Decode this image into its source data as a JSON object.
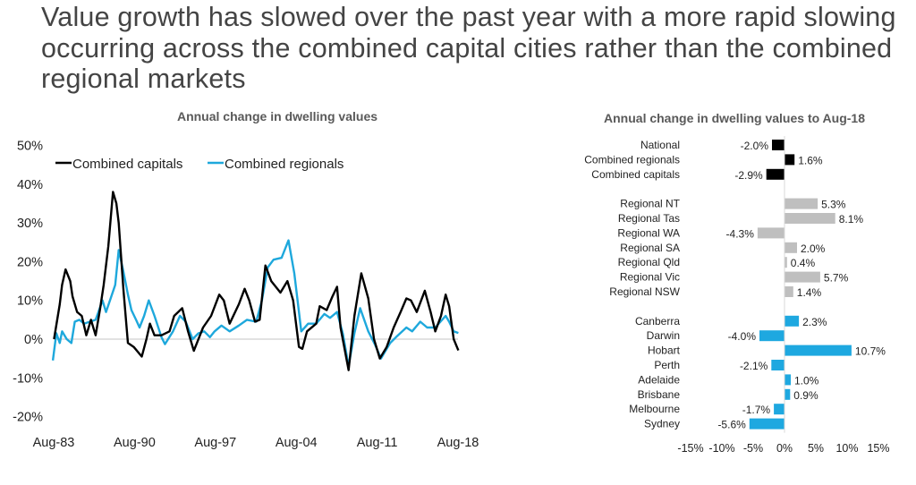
{
  "slide": {
    "title": "Value growth has slowed over the past year with a more rapid slowing occurring across the combined capital cities rather than the combined regional markets"
  },
  "colors": {
    "capitals": "#000000",
    "regionals": "#1ea8dc",
    "regional_bars": "#bfbfbf",
    "city_bars": "#1ea8e0",
    "summary_bars": "#000000"
  },
  "chart_data": [
    {
      "type": "line",
      "title": "Annual change in dwelling values",
      "xlabel": "",
      "ylabel": "",
      "xlim": [
        1983.67,
        2018.67
      ],
      "ylim": [
        -20,
        50
      ],
      "yticks": [
        "-20%",
        "-10%",
        "0%",
        "10%",
        "20%",
        "30%",
        "40%",
        "50%"
      ],
      "ytick_values": [
        -20,
        -10,
        0,
        10,
        20,
        30,
        40,
        50
      ],
      "xticks": [
        "Aug-83",
        "Aug-90",
        "Aug-97",
        "Aug-04",
        "Aug-11",
        "Aug-18"
      ],
      "xtick_values": [
        1983.67,
        1990.67,
        1997.67,
        2004.67,
        2011.67,
        2018.67
      ],
      "legend_position": "top-left",
      "series": [
        {
          "name": "Combined capitals",
          "color": "#000000",
          "x": [
            1983.7,
            1984.2,
            1984.4,
            1984.7,
            1985.1,
            1985.3,
            1985.7,
            1986.1,
            1986.5,
            1986.9,
            1987.3,
            1987.7,
            1988.0,
            1988.4,
            1988.8,
            1989.1,
            1989.3,
            1989.7,
            1990.1,
            1990.6,
            1991.3,
            1991.7,
            1992.0,
            1992.4,
            1993.0,
            1993.7,
            1994.1,
            1994.8,
            1995.3,
            1995.8,
            1996.6,
            1997.3,
            1998.0,
            1998.4,
            1998.9,
            1999.7,
            2000.2,
            2000.6,
            2001.1,
            2001.5,
            2002.0,
            2002.5,
            2003.3,
            2003.9,
            2004.4,
            2004.9,
            2005.2,
            2005.6,
            2006.4,
            2006.7,
            2007.3,
            2007.8,
            2008.2,
            2008.5,
            2009.2,
            2009.7,
            2010.3,
            2010.9,
            2011.4,
            2011.9,
            2012.5,
            2013.1,
            2013.7,
            2014.2,
            2014.6,
            2015.1,
            2015.8,
            2016.3,
            2016.7,
            2017.2,
            2017.6,
            2017.9,
            2018.3,
            2018.7
          ],
          "y": [
            0,
            9,
            14,
            18,
            15,
            11,
            7,
            6,
            1,
            5,
            1,
            8,
            14,
            24,
            38,
            35,
            30,
            13,
            -1,
            -2,
            -4.5,
            0,
            4,
            1,
            1,
            2,
            6,
            8,
            2,
            -3,
            3,
            6,
            11.5,
            10,
            4,
            9,
            13,
            10,
            4.5,
            5,
            19,
            15,
            12,
            15,
            10,
            -2,
            -2.5,
            2,
            4,
            8.5,
            7.5,
            11,
            13.5,
            3,
            -8,
            6,
            17,
            10.5,
            0,
            -5,
            -2,
            3,
            7,
            10.5,
            10,
            7,
            12.5,
            7,
            2,
            6,
            11.5,
            8.5,
            0,
            -2.9
          ]
        },
        {
          "name": "Combined regionals",
          "color": "#1ea8dc",
          "x": [
            1983.6,
            1983.9,
            1984.2,
            1984.4,
            1984.8,
            1985.2,
            1985.5,
            1985.9,
            1986.3,
            1986.8,
            1987.3,
            1987.9,
            1988.2,
            1988.6,
            1989.0,
            1989.3,
            1989.7,
            1990.1,
            1990.4,
            1990.8,
            1991.1,
            1991.5,
            1991.9,
            1992.4,
            1993.0,
            1993.3,
            1994.0,
            1994.6,
            1995.1,
            1995.7,
            1996.2,
            1996.7,
            1997.2,
            1997.6,
            1998.2,
            1998.9,
            1999.7,
            2000.4,
            2001.2,
            2001.7,
            2002.2,
            2002.7,
            2003.4,
            2004.0,
            2004.5,
            2005.1,
            2005.7,
            2006.4,
            2007.1,
            2007.6,
            2008.2,
            2008.7,
            2009.2,
            2009.7,
            2010.2,
            2010.9,
            2011.5,
            2012.0,
            2012.8,
            2013.3,
            2014.2,
            2014.7,
            2015.4,
            2016.0,
            2016.7,
            2017.6,
            2017.9,
            2018.3,
            2018.7
          ],
          "y": [
            -5.5,
            1.5,
            -1,
            2,
            0,
            -1,
            4.5,
            5,
            4,
            4.5,
            5,
            10,
            7,
            10.5,
            14,
            23,
            17.5,
            11.5,
            7.5,
            5,
            3,
            6,
            10,
            6,
            0.5,
            -1.3,
            2,
            6,
            4.5,
            0,
            1.5,
            2,
            0.5,
            2,
            3.5,
            2,
            3.5,
            5,
            4.5,
            10,
            18.5,
            20.5,
            21,
            25.5,
            17,
            2,
            4,
            4,
            6.5,
            5.5,
            7,
            1.5,
            -7,
            1.5,
            8,
            2,
            -1.5,
            -5,
            -1,
            0.5,
            3,
            2,
            4.5,
            3,
            3,
            6,
            4.5,
            2,
            1.6
          ]
        }
      ]
    },
    {
      "type": "bar",
      "orientation": "horizontal",
      "title": "Annual change in dwelling values to Aug-18",
      "xlim": [
        -15,
        15
      ],
      "xticks": [
        "-15%",
        "-10%",
        "-5%",
        "0%",
        "5%",
        "10%",
        "15%"
      ],
      "xtick_values": [
        -15,
        -10,
        -5,
        0,
        5,
        10,
        15
      ],
      "groups": [
        {
          "name": "summary",
          "color": "#000000",
          "categories": [
            "National",
            "Combined regionals",
            "Combined capitals"
          ],
          "values": [
            -2.0,
            1.6,
            -2.9
          ],
          "labels": [
            "-2.0%",
            "1.6%",
            "-2.9%"
          ]
        },
        {
          "name": "regional",
          "color": "#bfbfbf",
          "categories": [
            "Regional NT",
            "Regional Tas",
            "Regional WA",
            "Regional SA",
            "Regional Qld",
            "Regional Vic",
            "Regional NSW"
          ],
          "values": [
            5.3,
            8.1,
            -4.3,
            2.0,
            0.4,
            5.7,
            1.4
          ],
          "labels": [
            "5.3%",
            "8.1%",
            "-4.3%",
            "2.0%",
            "0.4%",
            "5.7%",
            "1.4%"
          ]
        },
        {
          "name": "capital",
          "color": "#1ea8e0",
          "categories": [
            "Canberra",
            "Darwin",
            "Hobart",
            "Perth",
            "Adelaide",
            "Brisbane",
            "Melbourne",
            "Sydney"
          ],
          "values": [
            2.3,
            -4.0,
            10.7,
            -2.1,
            1.0,
            0.9,
            -1.7,
            -5.6
          ],
          "labels": [
            "2.3%",
            "-4.0%",
            "10.7%",
            "-2.1%",
            "1.0%",
            "0.9%",
            "-1.7%",
            "-5.6%"
          ]
        }
      ]
    }
  ]
}
